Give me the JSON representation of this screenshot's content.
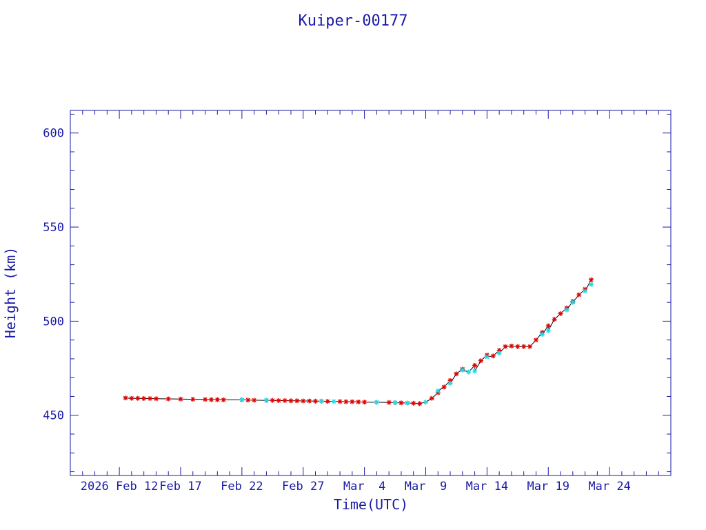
{
  "chart_data": {
    "type": "scatter",
    "title": "Kuiper-00177",
    "xlabel": "Time(UTC)",
    "ylabel": "Height (km)",
    "x_axis": {
      "unit": "date",
      "min": "2026-02-08",
      "max": "2026-03-29",
      "tick_labels": [
        {
          "date": "2026-02-12",
          "label": "2026 Feb 12"
        },
        {
          "date": "2026-02-17",
          "label": "Feb 17"
        },
        {
          "date": "2026-02-22",
          "label": "Feb 22"
        },
        {
          "date": "2026-02-27",
          "label": "Feb 27"
        },
        {
          "date": "2026-03-04",
          "label": "Mar  4"
        },
        {
          "date": "2026-03-09",
          "label": "Mar  9"
        },
        {
          "date": "2026-03-14",
          "label": "Mar 14"
        },
        {
          "date": "2026-03-19",
          "label": "Mar 19"
        },
        {
          "date": "2026-03-24",
          "label": "Mar 24"
        }
      ]
    },
    "y_axis": {
      "min": 418,
      "max": 612,
      "ticks": [
        450,
        500,
        550,
        600
      ]
    },
    "grid": false,
    "colors": {
      "axis": "#1a1aa6",
      "line": "#000000",
      "red_points": "#e00000",
      "cyan_points": "#22d8e8"
    },
    "series": [
      {
        "marker": "asterisk",
        "color": "red",
        "points": [
          [
            "2026-02-12T12:00",
            459.2
          ],
          [
            "2026-02-13T00:00",
            459.0
          ],
          [
            "2026-02-13T12:00",
            459.0
          ],
          [
            "2026-02-14T00:00",
            458.9
          ],
          [
            "2026-02-14T12:00",
            458.9
          ],
          [
            "2026-02-15T00:00",
            458.8
          ],
          [
            "2026-02-16T00:00",
            458.7
          ],
          [
            "2026-02-17T00:00",
            458.6
          ],
          [
            "2026-02-18T00:00",
            458.5
          ],
          [
            "2026-02-19T00:00",
            458.4
          ],
          [
            "2026-02-19T12:00",
            458.3
          ],
          [
            "2026-02-20T00:00",
            458.3
          ],
          [
            "2026-02-20T12:00",
            458.2
          ],
          [
            "2026-02-22T00:00",
            458.2
          ],
          [
            "2026-02-22T12:00",
            458.1
          ],
          [
            "2026-02-23T00:00",
            458.0
          ],
          [
            "2026-02-24T00:00",
            457.9
          ],
          [
            "2026-02-24T12:00",
            457.9
          ],
          [
            "2026-02-25T00:00",
            457.8
          ],
          [
            "2026-02-25T12:00",
            457.8
          ],
          [
            "2026-02-26T00:00",
            457.7
          ],
          [
            "2026-02-26T12:00",
            457.7
          ],
          [
            "2026-02-27T00:00",
            457.6
          ],
          [
            "2026-02-27T12:00",
            457.6
          ],
          [
            "2026-02-28T00:00",
            457.5
          ],
          [
            "2026-02-28T12:00",
            457.5
          ],
          [
            "2026-03-01T00:00",
            457.4
          ],
          [
            "2026-03-02T00:00",
            457.3
          ],
          [
            "2026-03-02T12:00",
            457.2
          ],
          [
            "2026-03-03T00:00",
            457.2
          ],
          [
            "2026-03-03T12:00",
            457.1
          ],
          [
            "2026-03-04T00:00",
            457.0
          ],
          [
            "2026-03-05T00:00",
            456.9
          ],
          [
            "2026-03-06T00:00",
            456.8
          ],
          [
            "2026-03-06T12:00",
            456.7
          ],
          [
            "2026-03-07T00:00",
            456.6
          ],
          [
            "2026-03-07T12:00",
            456.5
          ],
          [
            "2026-03-08T00:00",
            456.4
          ],
          [
            "2026-03-08T12:00",
            456.2
          ],
          [
            "2026-03-09T12:00",
            459.0
          ],
          [
            "2026-03-10T00:00",
            462.0
          ],
          [
            "2026-03-10T12:00",
            465.0
          ],
          [
            "2026-03-11T00:00",
            468.5
          ],
          [
            "2026-03-11T12:00",
            472.0
          ],
          [
            "2026-03-12T00:00",
            474.5
          ],
          [
            "2026-03-13T00:00",
            476.5
          ],
          [
            "2026-03-13T12:00",
            479.0
          ],
          [
            "2026-03-14T00:00",
            482.0
          ],
          [
            "2026-03-14T12:00",
            481.5
          ],
          [
            "2026-03-15T00:00",
            484.5
          ],
          [
            "2026-03-15T12:00",
            486.5
          ],
          [
            "2026-03-16T00:00",
            486.8
          ],
          [
            "2026-03-16T12:00",
            486.5
          ],
          [
            "2026-03-17T00:00",
            486.5
          ],
          [
            "2026-03-17T12:00",
            486.5
          ],
          [
            "2026-03-18T00:00",
            490.0
          ],
          [
            "2026-03-18T12:00",
            494.0
          ],
          [
            "2026-03-19T00:00",
            497.5
          ],
          [
            "2026-03-19T12:00",
            501.0
          ],
          [
            "2026-03-20T00:00",
            504.0
          ],
          [
            "2026-03-20T12:00",
            507.0
          ],
          [
            "2026-03-21T00:00",
            510.5
          ],
          [
            "2026-03-21T12:00",
            514.0
          ],
          [
            "2026-03-22T00:00",
            517.0
          ],
          [
            "2026-03-22T12:00",
            522.0
          ]
        ]
      },
      {
        "marker": "asterisk",
        "color": "cyan",
        "points": [
          [
            "2026-02-22T00:00",
            458.3
          ],
          [
            "2026-02-24T00:00",
            458.0
          ],
          [
            "2026-02-28T12:00",
            457.5
          ],
          [
            "2026-03-01T12:00",
            457.3
          ],
          [
            "2026-03-05T00:00",
            456.9
          ],
          [
            "2026-03-06T12:00",
            456.7
          ],
          [
            "2026-03-07T12:00",
            456.5
          ],
          [
            "2026-03-09T00:00",
            457.0
          ],
          [
            "2026-03-10T00:00",
            463.0
          ],
          [
            "2026-03-11T00:00",
            467.0
          ],
          [
            "2026-03-12T00:00",
            474.0
          ],
          [
            "2026-03-12T12:00",
            473.0
          ],
          [
            "2026-03-13T00:00",
            473.5
          ],
          [
            "2026-03-14T00:00",
            481.0
          ],
          [
            "2026-03-15T00:00",
            483.0
          ],
          [
            "2026-03-18T12:00",
            493.0
          ],
          [
            "2026-03-19T00:00",
            495.0
          ],
          [
            "2026-03-20T12:00",
            506.0
          ],
          [
            "2026-03-21T00:00",
            510.0
          ],
          [
            "2026-03-22T00:00",
            516.0
          ],
          [
            "2026-03-22T12:00",
            519.5
          ]
        ]
      }
    ]
  }
}
